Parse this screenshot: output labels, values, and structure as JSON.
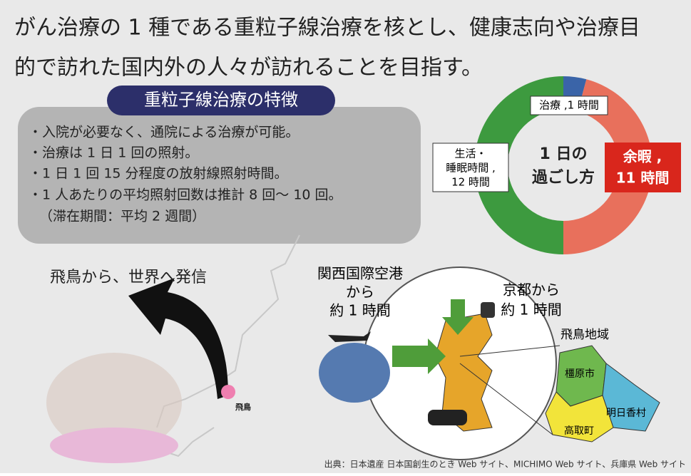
{
  "header": {
    "lines": [
      "がん治療の 1 種である重粒子線治療を核とし、健康志向や治療目",
      "的で訪れた国内外の人々が訪れることを目指す。"
    ]
  },
  "features": {
    "title": "重粒子線治療の特徴",
    "items": [
      "・入院が必要なく、通院による治療が可能。",
      "・治療は 1 日 1 回の照射。",
      "・1 日 1 回 15 分程度の放射線照射時間。",
      "・1 人あたりの平均照射回数は推計 8 回～ 10 回。",
      "（滞在期間：平均 2 週間）"
    ]
  },
  "donut": {
    "title_lines": [
      "1 日の",
      "過ごし方"
    ],
    "segments": [
      {
        "label_lines": [
          "治療 ,1 時間"
        ],
        "value": 1,
        "color": "#3a64a8"
      },
      {
        "label_lines": [
          "余暇 ,",
          "11 時間"
        ],
        "value": 11,
        "color": "#e8705c"
      },
      {
        "label_lines": [
          "生活・",
          "睡眠時間 ,",
          "12 時間"
        ],
        "value": 12,
        "color": "#3d9a3f"
      }
    ]
  },
  "map": {
    "slogan": "飛鳥から、世界へ発信",
    "asuka_pin": "飛鳥",
    "airport_lines": [
      "関西国際空港",
      "から",
      "約 1 時間"
    ],
    "kyoto_lines": [
      "京都から",
      "約 1 時間"
    ],
    "region": "飛鳥地域",
    "towns": [
      "橿原市",
      "明日香村",
      "高取町"
    ]
  },
  "source": "出典：日本遺産 日本国創生のとき Web サイト、MICHIMO Web サイト、兵庫県 Web サイト"
}
